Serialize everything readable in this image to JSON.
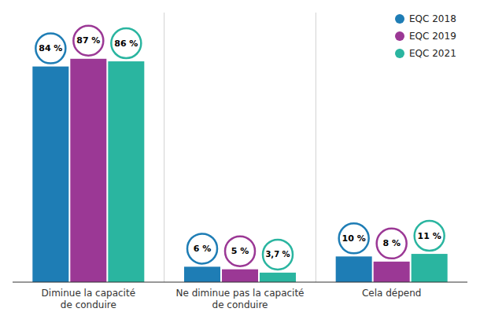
{
  "chart_data": {
    "type": "bar",
    "categories": [
      "Diminue la capacité\nde conduire",
      "Ne diminue pas la capacité\nde conduire",
      "Cela dépend"
    ],
    "series": [
      {
        "name": "EQC 2018",
        "color": "#1e7db5",
        "values": [
          84,
          6,
          10
        ],
        "value_labels": [
          "84 %",
          "6 %",
          "10 %"
        ]
      },
      {
        "name": "EQC 2019",
        "color": "#9b3895",
        "values": [
          87,
          5,
          8
        ],
        "value_labels": [
          "87 %",
          "5 %",
          "8 %"
        ]
      },
      {
        "name": "EQC 2021",
        "color": "#2ab5a0",
        "values": [
          86,
          3.7,
          11
        ],
        "value_labels": [
          "86 %",
          "3,7 %",
          "11 %"
        ]
      }
    ],
    "ylim": [
      0,
      105
    ],
    "grid": false,
    "legend": "upper-right",
    "data_labels": true,
    "tick_labels": "x"
  }
}
